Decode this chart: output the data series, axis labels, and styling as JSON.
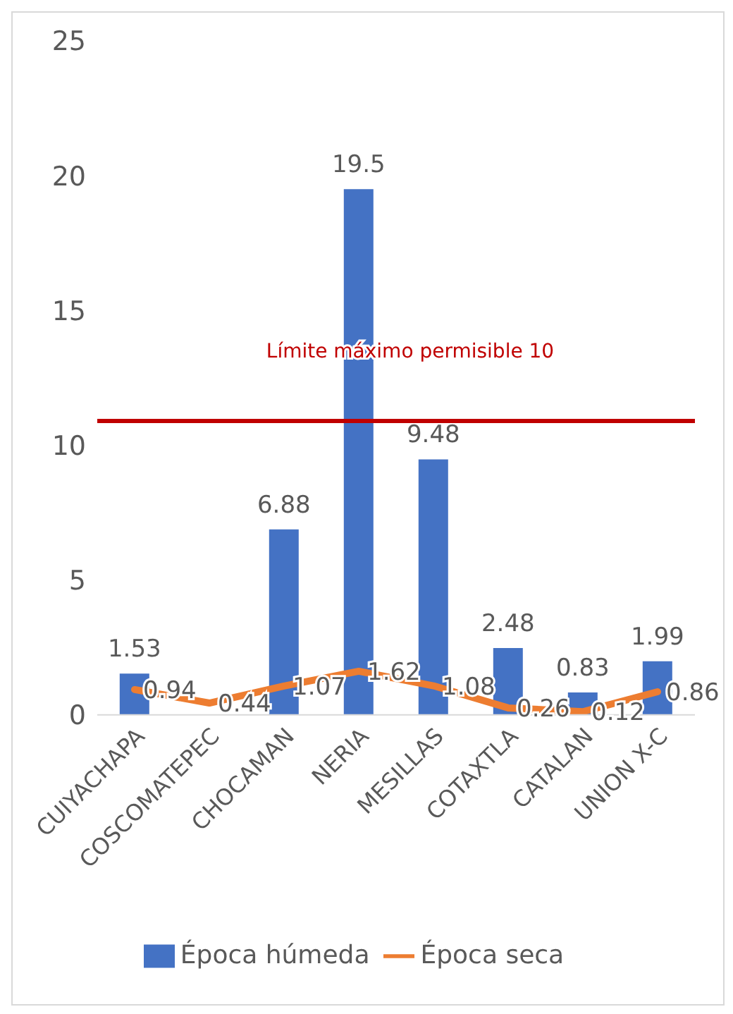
{
  "chart_data": {
    "type": "bar",
    "categories": [
      "CUIYACHAPA",
      "COSCOMATEPEC",
      "CHOCAMAN",
      "NERIA",
      "MESILLAS",
      "COTAXTLA",
      "CATALAN",
      "UNION X-C"
    ],
    "series": [
      {
        "name": "Época húmeda",
        "color": "#4472c4",
        "values": [
          1.53,
          null,
          6.88,
          19.5,
          9.48,
          2.48,
          0.83,
          1.99
        ]
      },
      {
        "name": "Época seca",
        "type": "line",
        "color": "#ed7d31",
        "values": [
          0.94,
          0.44,
          1.07,
          1.62,
          1.08,
          0.26,
          0.12,
          0.86
        ]
      }
    ],
    "ylim": [
      0,
      25
    ],
    "yticks": [
      0,
      5,
      10,
      15,
      20,
      25
    ],
    "grid": false,
    "legend": "bottom",
    "data_labels": true,
    "marker": "none",
    "ref_lines": [
      {
        "axis": "y",
        "value": 10.9,
        "label": "Límite máximo permisible 10",
        "color": "#c00000"
      }
    ]
  }
}
